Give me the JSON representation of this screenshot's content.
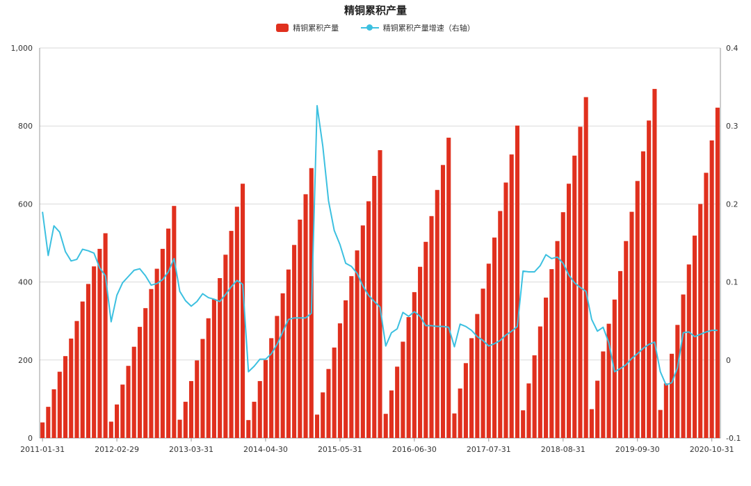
{
  "chart_data": {
    "type": "bar+line",
    "title": "精铜累积产量",
    "legend": [
      "精铜累积产量",
      "精铜累积产量增速（右轴）"
    ],
    "legend_position": "top-center",
    "colors": {
      "bar": "#e0301e",
      "line": "#3cc0e0"
    },
    "grid": true,
    "y_left": {
      "min": 0,
      "max": 1000,
      "ticks": [
        "0",
        "200",
        "400",
        "600",
        "800",
        "1,000"
      ]
    },
    "y_right": {
      "min": -0.1,
      "max": 0.4,
      "ticks": [
        "-0.1",
        "0",
        "0.1",
        "0.2",
        "0.3",
        "0.4"
      ]
    },
    "x_tick_labels": [
      "2011-01-31",
      "2012-02-29",
      "2013-03-31",
      "2014-04-30",
      "2015-05-31",
      "2016-06-30",
      "2017-07-31",
      "2018-08-31",
      "2019-09-30",
      "2020-10-31"
    ],
    "x_start": "2011-01",
    "x_end": "2020-11",
    "series": [
      {
        "name": "精铜累积产量",
        "axis": "left",
        "kind": "bar",
        "values": [
          40,
          80,
          125,
          170,
          210,
          255,
          300,
          350,
          395,
          440,
          485,
          525,
          42,
          86,
          137,
          185,
          234,
          285,
          333,
          382,
          434,
          485,
          537,
          595,
          47,
          93,
          146,
          199,
          254,
          307,
          356,
          410,
          470,
          531,
          593,
          652,
          46,
          93,
          146,
          200,
          256,
          313,
          371,
          432,
          495,
          560,
          625,
          692,
          60,
          117,
          177,
          232,
          294,
          353,
          415,
          481,
          545,
          607,
          672,
          738,
          62,
          122,
          183,
          247,
          310,
          374,
          439,
          503,
          569,
          636,
          700,
          770,
          63,
          127,
          192,
          256,
          318,
          383,
          447,
          514,
          582,
          655,
          727,
          801,
          71,
          140,
          212,
          286,
          360,
          433,
          505,
          579,
          652,
          724,
          798,
          874,
          74,
          147,
          222,
          293,
          355,
          428,
          505,
          580,
          659,
          735,
          814,
          895,
          72,
          140,
          216,
          290,
          368,
          445,
          519,
          600,
          680,
          763,
          847
        ]
      },
      {
        "name": "精铜累积产量增速（右轴）",
        "axis": "right",
        "kind": "line",
        "values": [
          0.19,
          0.134,
          0.172,
          0.164,
          0.139,
          0.127,
          0.129,
          0.142,
          0.14,
          0.137,
          0.118,
          0.108,
          0.049,
          0.083,
          0.099,
          0.107,
          0.115,
          0.117,
          0.108,
          0.096,
          0.098,
          0.103,
          0.113,
          0.13,
          0.088,
          0.076,
          0.069,
          0.075,
          0.085,
          0.08,
          0.078,
          0.075,
          0.084,
          0.094,
          0.102,
          0.097,
          -0.015,
          -0.008,
          0.001,
          0.001,
          0.008,
          0.02,
          0.036,
          0.052,
          0.054,
          0.054,
          0.054,
          0.06,
          0.326,
          0.274,
          0.204,
          0.166,
          0.148,
          0.124,
          0.12,
          0.111,
          0.095,
          0.083,
          0.075,
          0.068,
          0.018,
          0.035,
          0.04,
          0.061,
          0.056,
          0.062,
          0.056,
          0.044,
          0.044,
          0.043,
          0.043,
          0.042,
          0.017,
          0.046,
          0.043,
          0.038,
          0.03,
          0.025,
          0.018,
          0.021,
          0.025,
          0.032,
          0.037,
          0.043,
          0.114,
          0.113,
          0.113,
          0.121,
          0.135,
          0.13,
          0.132,
          0.124,
          0.109,
          0.099,
          0.093,
          0.088,
          0.052,
          0.037,
          0.042,
          0.022,
          -0.015,
          -0.011,
          -0.006,
          0.002,
          0.008,
          0.015,
          0.02,
          0.023,
          -0.015,
          -0.032,
          -0.029,
          -0.01,
          0.035,
          0.036,
          0.03,
          0.033,
          0.036,
          0.038,
          0.038
        ]
      }
    ]
  }
}
